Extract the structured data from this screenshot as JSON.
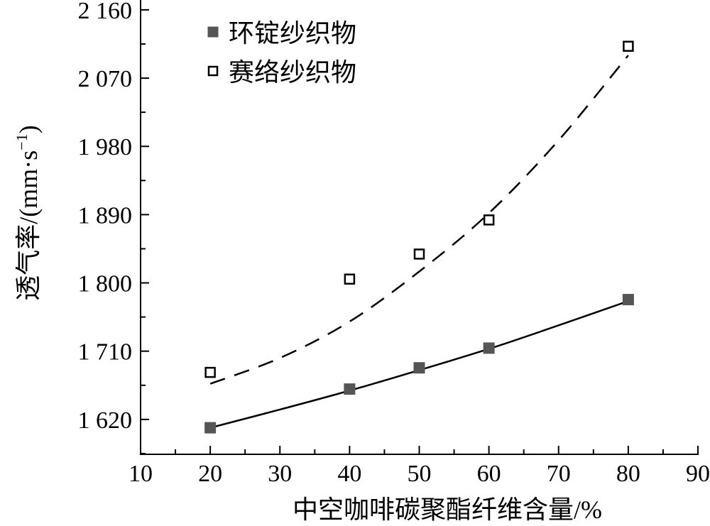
{
  "chart_data": {
    "type": "scatter",
    "title": "",
    "xlabel": "中空咖啡碳聚酯纤维含量/%",
    "ylabel": "透气率/(mm·s",
    "ylabel_sup": "−1",
    "ylabel_end": ")",
    "xlim": [
      10,
      90
    ],
    "ylim": [
      1574,
      2173
    ],
    "xticks": [
      10,
      20,
      30,
      40,
      50,
      60,
      70,
      80,
      90
    ],
    "xtick_labels": [
      "10",
      "20",
      "30",
      "40",
      "50",
      "60",
      "70",
      "80",
      "90"
    ],
    "yticks": [
      1620,
      1710,
      1800,
      1890,
      1980,
      2070,
      2160
    ],
    "ytick_labels": [
      "1 620",
      "1 710",
      "1 800",
      "1 890",
      "1 980",
      "2 070",
      "2 160"
    ],
    "grid": false,
    "legend_position": "top-left",
    "series": [
      {
        "name": "环锭纱织物",
        "marker": "filled-square",
        "color": "#555555",
        "x": [
          20,
          40,
          50,
          60,
          80
        ],
        "y": [
          1609,
          1660,
          1688,
          1714,
          1778
        ],
        "fit": {
          "style": "solid",
          "x": [
            20,
            30,
            40,
            50,
            60,
            70,
            80
          ],
          "y": [
            1609,
            1633,
            1658,
            1685,
            1713,
            1744,
            1776
          ]
        }
      },
      {
        "name": "赛络纱织物",
        "marker": "open-square",
        "color": "#000000",
        "x": [
          20,
          40,
          50,
          60,
          80
        ],
        "y": [
          1682,
          1805,
          1838,
          1883,
          2112
        ],
        "fit": {
          "style": "dashed",
          "x": [
            20,
            30,
            40,
            50,
            60,
            70,
            80
          ],
          "y": [
            1667,
            1701,
            1749,
            1815,
            1892,
            1988,
            2100
          ]
        }
      }
    ]
  }
}
